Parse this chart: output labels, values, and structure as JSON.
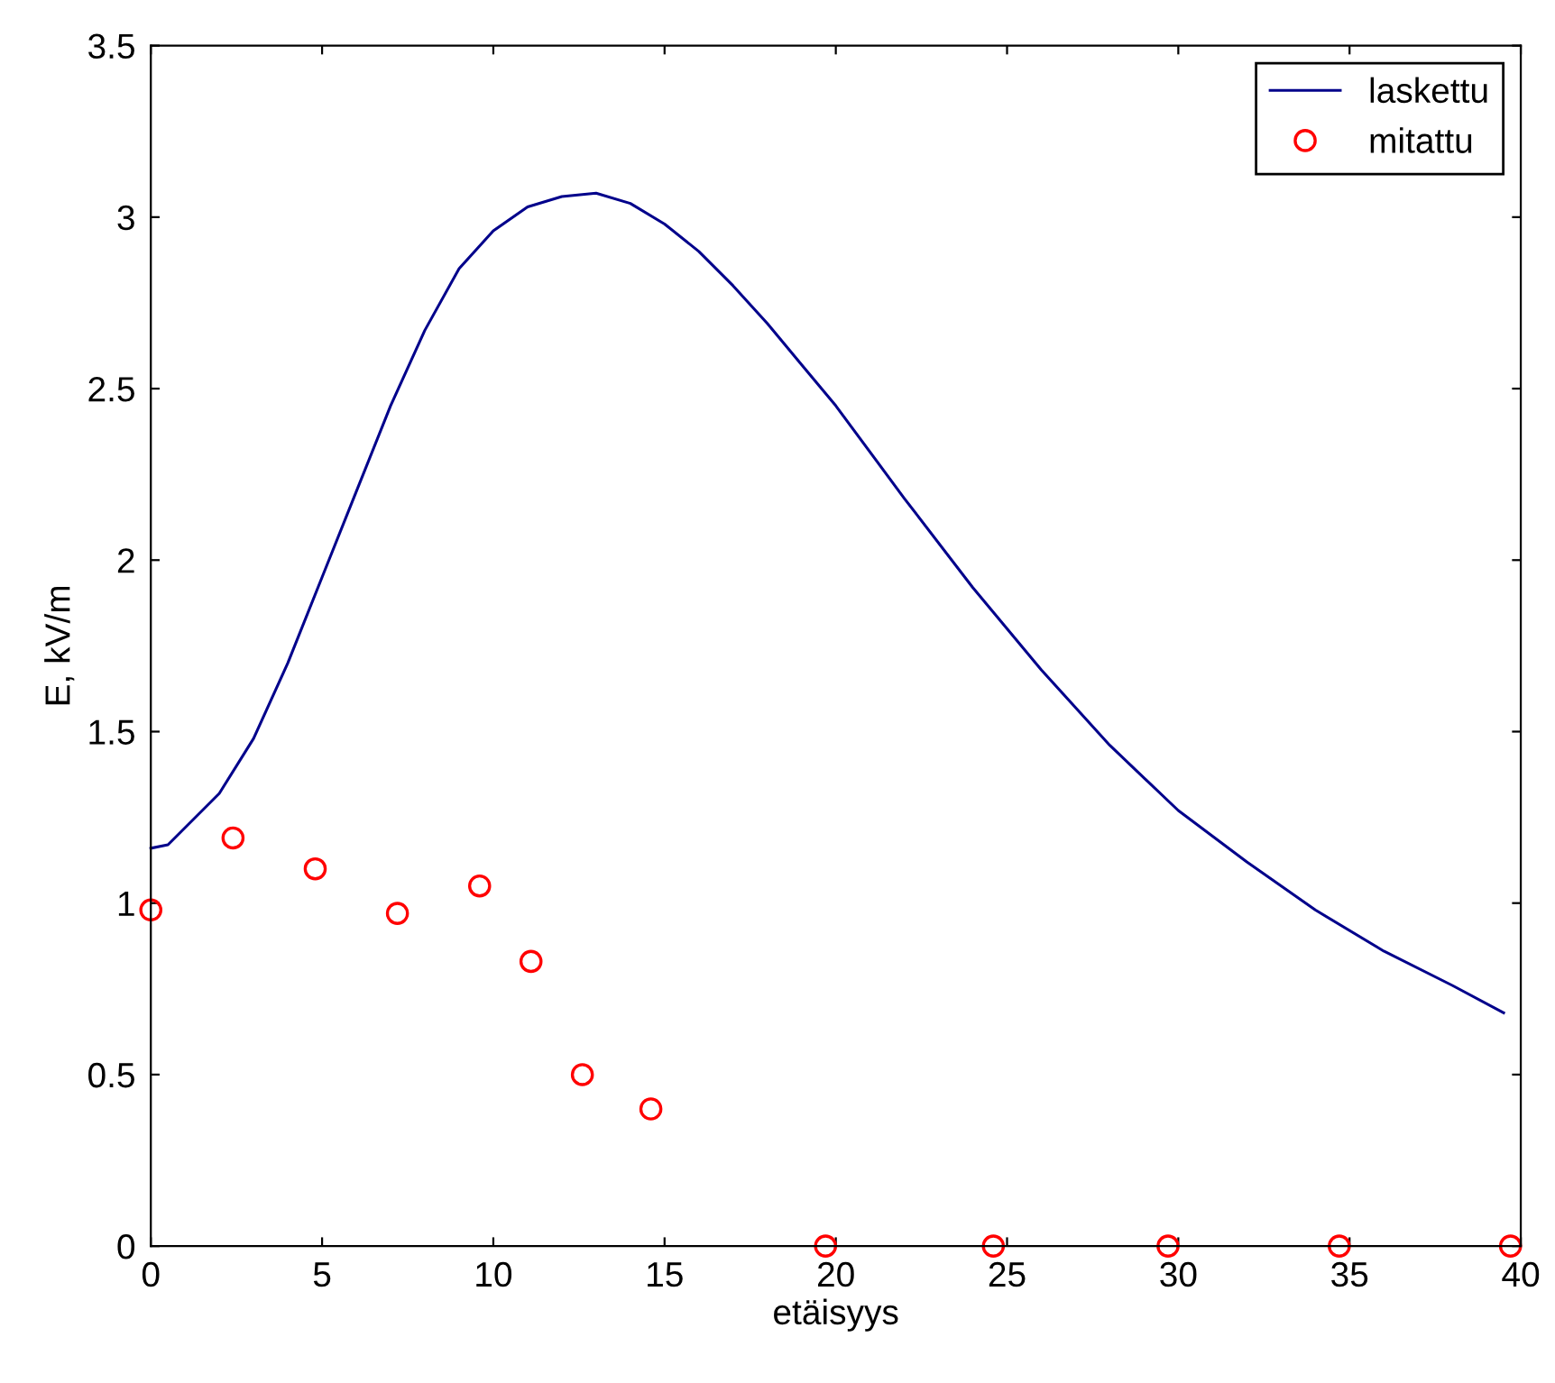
{
  "chart_data": {
    "type": "line",
    "xlabel": "etäisyys",
    "ylabel": "E, kV/m",
    "xlim": [
      0,
      40
    ],
    "xticks": [
      0,
      5,
      10,
      15,
      20,
      25,
      30,
      35,
      40
    ],
    "ylim": [
      0,
      3.5
    ],
    "yticks": [
      0,
      0.5,
      1,
      1.5,
      2,
      2.5,
      3,
      3.5
    ],
    "legend": "top right",
    "grid": false,
    "series": [
      {
        "name": "laskettu",
        "color": "#00008b",
        "marker": "none",
        "line_style": "solid",
        "x": [
          0,
          0.5,
          1,
          2,
          3,
          4,
          5,
          6,
          7,
          8,
          9,
          10,
          11,
          12,
          13,
          14,
          15,
          16,
          17,
          18,
          19,
          20,
          22,
          24,
          26,
          28,
          30,
          32,
          34,
          36,
          38,
          39.5
        ],
        "values": [
          1.16,
          1.17,
          1.22,
          1.32,
          1.48,
          1.7,
          1.95,
          2.2,
          2.45,
          2.67,
          2.85,
          2.96,
          3.03,
          3.06,
          3.07,
          3.04,
          2.98,
          2.9,
          2.8,
          2.69,
          2.57,
          2.45,
          2.18,
          1.92,
          1.68,
          1.46,
          1.27,
          1.12,
          0.98,
          0.86,
          0.76,
          0.68
        ]
      },
      {
        "name": "mitattu",
        "type": "scatter",
        "color": "#ff0000",
        "marker": "circle",
        "x": [
          0,
          2.4,
          4.8,
          7.2,
          9.6,
          11.1,
          12.6,
          14.6,
          19.7,
          24.6,
          29.7,
          34.7,
          39.7
        ],
        "values": [
          0.98,
          1.19,
          1.1,
          0.97,
          1.05,
          0.83,
          0.5,
          0.4,
          0,
          0,
          0,
          0,
          0
        ]
      }
    ]
  }
}
